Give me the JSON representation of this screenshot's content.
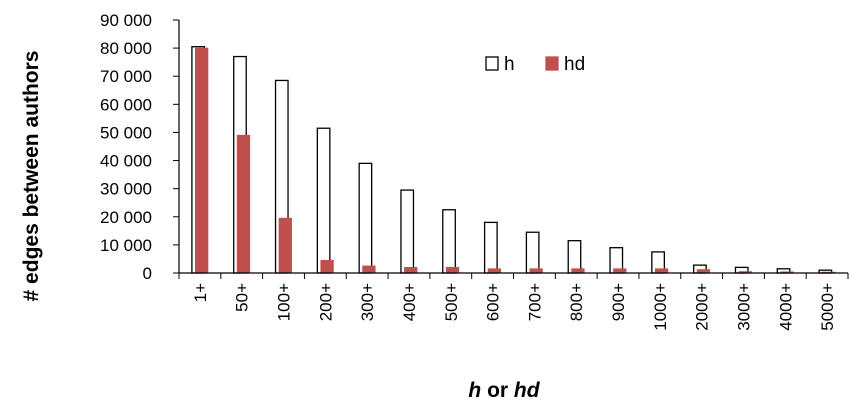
{
  "chart_data": {
    "type": "bar",
    "title": "",
    "ylabel": "# edges between authors",
    "xlabel_parts": [
      {
        "text": "h",
        "italic": true
      },
      {
        "text": " or ",
        "italic": false
      },
      {
        "text": "hd",
        "italic": true
      }
    ],
    "categories": [
      "1+",
      "50+",
      "100+",
      "200+",
      "300+",
      "400+",
      "500+",
      "600+",
      "700+",
      "800+",
      "900+",
      "1000+",
      "2000+",
      "3000+",
      "4000+",
      "5000+"
    ],
    "series": [
      {
        "name": "h",
        "color": "#ffffff",
        "stroke": "#000000",
        "values": [
          80500,
          77000,
          68500,
          51500,
          39000,
          29500,
          22500,
          18000,
          14500,
          11500,
          9000,
          7500,
          2800,
          2000,
          1500,
          1000
        ]
      },
      {
        "name": "hd",
        "color": "#c0504d",
        "stroke": "#c0504d",
        "values": [
          80000,
          49000,
          19500,
          4500,
          2500,
          2000,
          2000,
          1500,
          1500,
          1500,
          1500,
          1500,
          1200,
          500,
          400,
          300
        ]
      }
    ],
    "yticks": [
      "0",
      "10 000",
      "20 000",
      "30 000",
      "40 000",
      "50 000",
      "60 000",
      "70 000",
      "80 000",
      "90 000"
    ],
    "ylim": [
      0,
      90000
    ],
    "grid": false,
    "legend_position": "top-center"
  }
}
